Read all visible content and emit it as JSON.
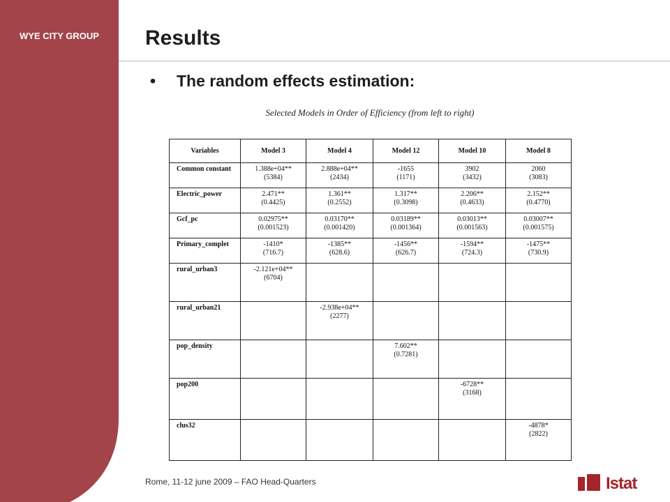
{
  "header": {
    "group_label": "WYE CITY GROUP",
    "title": "Results"
  },
  "bullet": "The random effects estimation:",
  "caption": "Selected Models in Order of Efficiency (from left to right)",
  "table": {
    "headers": [
      "Variables",
      "Model 3",
      "Model 4",
      "Model 12",
      "Model 10",
      "Model 8"
    ],
    "rows": [
      {
        "var": "Common constant",
        "cells": [
          [
            "1.388e+04**",
            "(5384)"
          ],
          [
            "2.888e+04**",
            "(2434)"
          ],
          [
            "-1655",
            "(1171)"
          ],
          [
            "3902",
            "(3432)"
          ],
          [
            "2060",
            "(3083)"
          ]
        ]
      },
      {
        "var": "Electric_power",
        "cells": [
          [
            "2.471**",
            "(0.4425)"
          ],
          [
            "1.361**",
            "(0.2552)"
          ],
          [
            "1.317**",
            "(0.3098)"
          ],
          [
            "2.206**",
            "(0.4633)"
          ],
          [
            "2.152**",
            "(0.4770)"
          ]
        ]
      },
      {
        "var": "Gcf_pc",
        "cells": [
          [
            "0.02975**",
            "(0.001523)"
          ],
          [
            "0.03170**",
            "(0.001420)"
          ],
          [
            "0.03189**",
            "(0.001364)"
          ],
          [
            "0.03013**",
            "(0.001563)"
          ],
          [
            "0.03007**",
            "(0.001575)"
          ]
        ]
      },
      {
        "var": "Primary_complet",
        "cells": [
          [
            "-1410*",
            "(716.7)"
          ],
          [
            "-1385**",
            "(628.6)"
          ],
          [
            "-1456**",
            "(626.7)"
          ],
          [
            "-1594**",
            "(724.3)"
          ],
          [
            "-1475**",
            "(730.9)"
          ]
        ]
      },
      {
        "var": "rural_urban3",
        "cells": [
          [
            "-2.121e+04**",
            "(6704)"
          ],
          [
            "",
            ""
          ],
          [
            "",
            ""
          ],
          [
            "",
            ""
          ],
          [
            "",
            ""
          ]
        ]
      },
      {
        "var": "rural_urban21",
        "cells": [
          [
            "",
            ""
          ],
          [
            "-2.938e+04**",
            "(2277)"
          ],
          [
            "",
            ""
          ],
          [
            "",
            ""
          ],
          [
            "",
            ""
          ]
        ]
      },
      {
        "var": "pop_density",
        "cells": [
          [
            "",
            ""
          ],
          [
            "",
            ""
          ],
          [
            "7.602**",
            "(0.7281)"
          ],
          [
            "",
            ""
          ],
          [
            "",
            ""
          ]
        ]
      },
      {
        "var": "pop200",
        "cells": [
          [
            "",
            ""
          ],
          [
            "",
            ""
          ],
          [
            "",
            ""
          ],
          [
            "-6728**",
            "(3168)"
          ],
          [
            "",
            ""
          ]
        ]
      },
      {
        "var": "clus32",
        "cells": [
          [
            "",
            ""
          ],
          [
            "",
            ""
          ],
          [
            "",
            ""
          ],
          [
            "",
            ""
          ],
          [
            "-4878*",
            "(2822)"
          ]
        ]
      }
    ]
  },
  "footer": "Rome, 11-12 june 2009 – FAO Head-Quarters",
  "logo_text": "Istat",
  "colors": {
    "sidebar": "#a3434a",
    "logo": "#a3262b"
  }
}
